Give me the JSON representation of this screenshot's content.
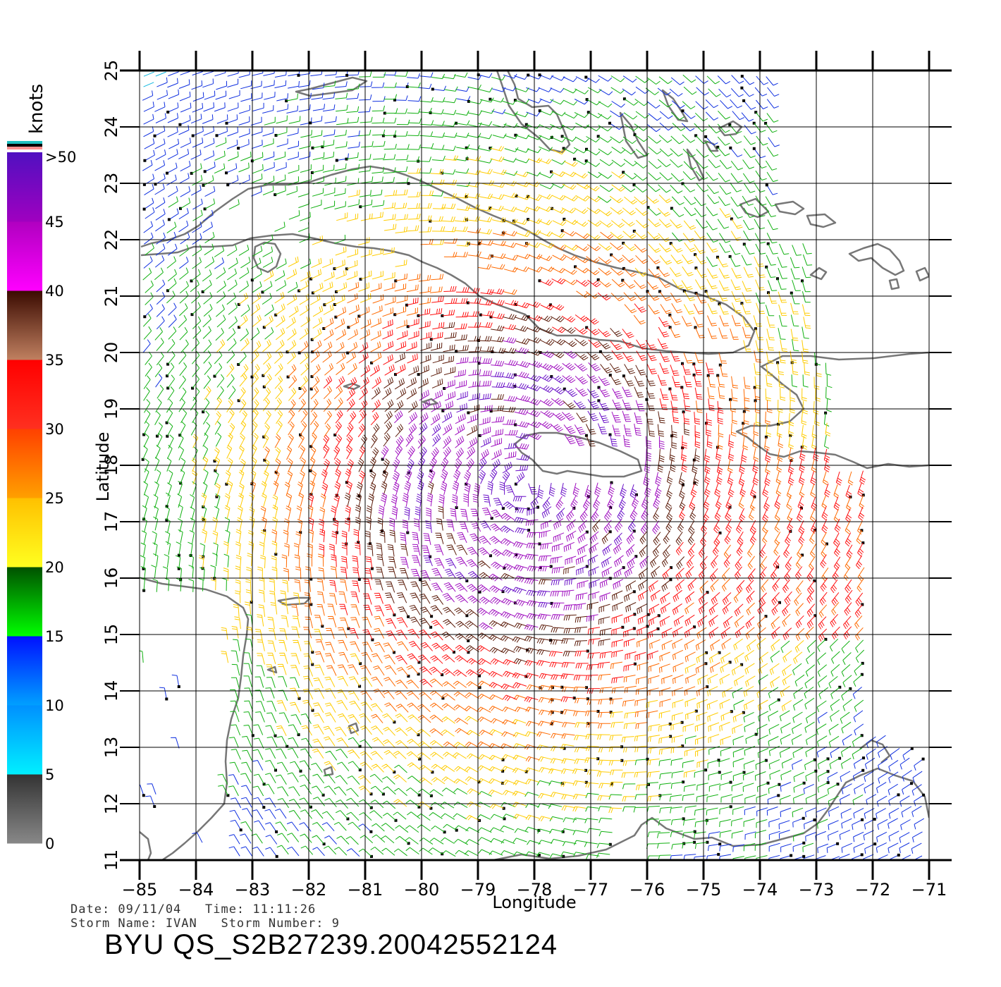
{
  "map": {
    "x_axis": {
      "label": "Longitude",
      "ticks": [
        "−85",
        "−84",
        "−83",
        "−82",
        "−81",
        "−80",
        "−79",
        "−78",
        "−77",
        "−76",
        "−75",
        "−74",
        "−73",
        "−72",
        "−71"
      ]
    },
    "y_axis": {
      "label": "Latitude",
      "ticks": [
        "11",
        "12",
        "13",
        "14",
        "15",
        "16",
        "17",
        "18",
        "19",
        "20",
        "21",
        "22",
        "23",
        "24",
        "25"
      ]
    },
    "colorbar": {
      "unit": "knots",
      "labels": [
        "0",
        "5",
        "10",
        "15",
        "20",
        "25",
        "30",
        "35",
        "40",
        "45",
        ">50"
      ],
      "bands": [
        {
          "from": 0,
          "to": 5,
          "top": "#333333",
          "bottom": "#888888"
        },
        {
          "from": 5,
          "to": 10,
          "top": "#0090ff",
          "bottom": "#00f0ff"
        },
        {
          "from": 10,
          "to": 15,
          "top": "#0010ff",
          "bottom": "#00a0ff"
        },
        {
          "from": 15,
          "to": 20,
          "top": "#005000",
          "bottom": "#00ff00"
        },
        {
          "from": 20,
          "to": 25,
          "top": "#ffc000",
          "bottom": "#ffff20"
        },
        {
          "from": 25,
          "to": 30,
          "top": "#ff4000",
          "bottom": "#ffa000"
        },
        {
          "from": 30,
          "to": 35,
          "top": "#ff0000",
          "bottom": "#ff3020"
        },
        {
          "from": 35,
          "to": 40,
          "top": "#3a0a00",
          "bottom": "#c08060"
        },
        {
          "from": 40,
          "to": 45,
          "top": "#b000c0",
          "bottom": "#ff00ff"
        },
        {
          "from": 45,
          "to": 50,
          "top": "#5010c0",
          "bottom": "#a000c0"
        }
      ],
      "overflow_colors": [
        "#20c0c0",
        "#000000",
        "#ff9090"
      ]
    },
    "storm_center": {
      "lon": -78.2,
      "lat": 17.6
    },
    "colors": {
      "coast": "#777777",
      "grid": "#000000"
    }
  },
  "info": {
    "line1": "Date: 09/11/04   Time: 11:11:26",
    "line2": "Storm Name: IVAN   Storm Number: 9",
    "title": "BYU QS_S2B27239.20042552124"
  }
}
